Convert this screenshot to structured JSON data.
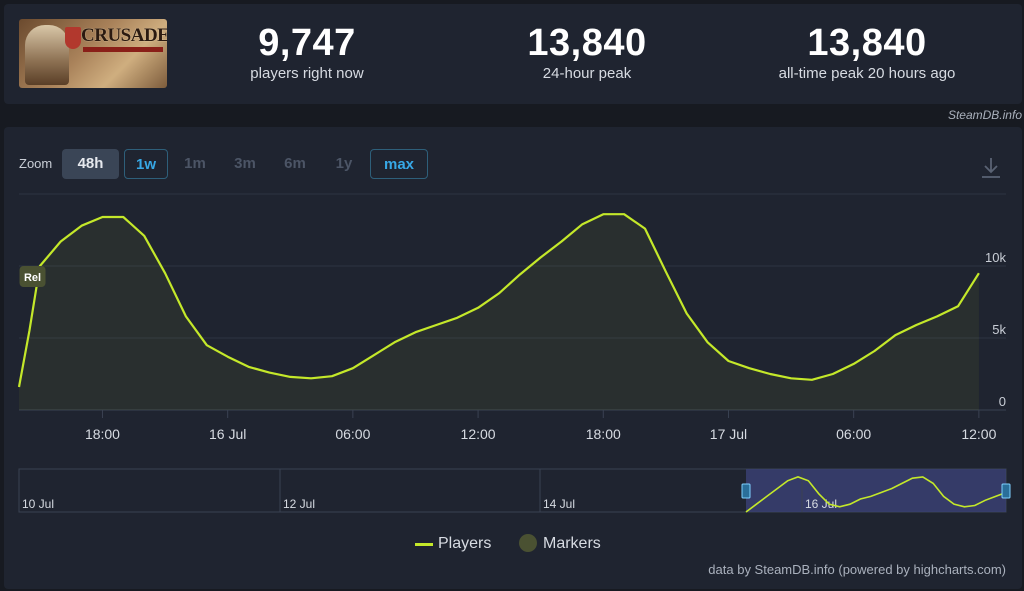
{
  "game": {
    "capsule_logo_text": "CRUSADER"
  },
  "stats": [
    {
      "value": "9,747",
      "label": "players right now"
    },
    {
      "value": "13,840",
      "label": "24-hour peak"
    },
    {
      "value": "13,840",
      "label": "all-time peak 20 hours ago"
    }
  ],
  "credit_top": "SteamDB.info",
  "zoom": {
    "label": "Zoom",
    "buttons": [
      "48h",
      "1w",
      "1m",
      "3m",
      "6m",
      "1y",
      "max"
    ],
    "active": "48h",
    "outlined": [
      "1w",
      "max"
    ]
  },
  "legend": {
    "players": "Players",
    "markers": "Markers"
  },
  "credit_bottom": "data by SteamDB.info (powered by highcharts.com)",
  "colors": {
    "line": "#c4e82a",
    "accent": "#37a8e6",
    "navigator_selection": "#3a3f72"
  },
  "chart_data": {
    "type": "line",
    "series": [
      {
        "name": "Players",
        "x": [
          0,
          0.5,
          1,
          2,
          3,
          4,
          5,
          6,
          7,
          8,
          9,
          10,
          11,
          12,
          13,
          14,
          15,
          16,
          17,
          18,
          19,
          20,
          21,
          22,
          23,
          24,
          25,
          26,
          27,
          28,
          29,
          30,
          31,
          32,
          33,
          34,
          35,
          36,
          37,
          38,
          39,
          40,
          41,
          42,
          43,
          44,
          45,
          46
        ],
        "values": [
          1600,
          5500,
          10000,
          11700,
          12800,
          13400,
          13400,
          12100,
          9500,
          6500,
          4500,
          3700,
          3000,
          2600,
          2300,
          2200,
          2350,
          2900,
          3800,
          4700,
          5400,
          5900,
          6400,
          7100,
          8100,
          9400,
          10600,
          11700,
          12900,
          13600,
          13600,
          12600,
          9600,
          6700,
          4700,
          3400,
          2900,
          2500,
          2200,
          2100,
          2500,
          3200,
          4100,
          5200,
          5900,
          6500,
          7200,
          9500
        ]
      }
    ],
    "x_axis": {
      "unit": "hours",
      "ticks": [
        {
          "at": 4,
          "label": "18:00"
        },
        {
          "at": 10,
          "label": "16 Jul"
        },
        {
          "at": 16,
          "label": "06:00"
        },
        {
          "at": 22,
          "label": "12:00"
        },
        {
          "at": 28,
          "label": "18:00"
        },
        {
          "at": 34,
          "label": "17 Jul"
        },
        {
          "at": 40,
          "label": "06:00"
        },
        {
          "at": 46,
          "label": "12:00"
        }
      ],
      "range": [
        0,
        47.3
      ]
    },
    "y_axis": {
      "ticks": [
        {
          "value": 0,
          "label": "0"
        },
        {
          "value": 5000,
          "label": "5k"
        },
        {
          "value": 10000,
          "label": "10k"
        }
      ],
      "ylim": [
        0,
        15000
      ]
    },
    "flags": [
      {
        "x": 0.6,
        "label": "Rel"
      }
    ],
    "navigator": {
      "labels": [
        "10 Jul",
        "12 Jul",
        "14 Jul",
        "16 Jul"
      ],
      "values": [
        0,
        3,
        6,
        9,
        12,
        13.5,
        12,
        7,
        3,
        2,
        3,
        5,
        6,
        7.5,
        9,
        11,
        13,
        13.5,
        11,
        6,
        3,
        2,
        2.5,
        4.5,
        6,
        7.5
      ]
    },
    "grid": true,
    "legend_position": "bottom-center"
  }
}
